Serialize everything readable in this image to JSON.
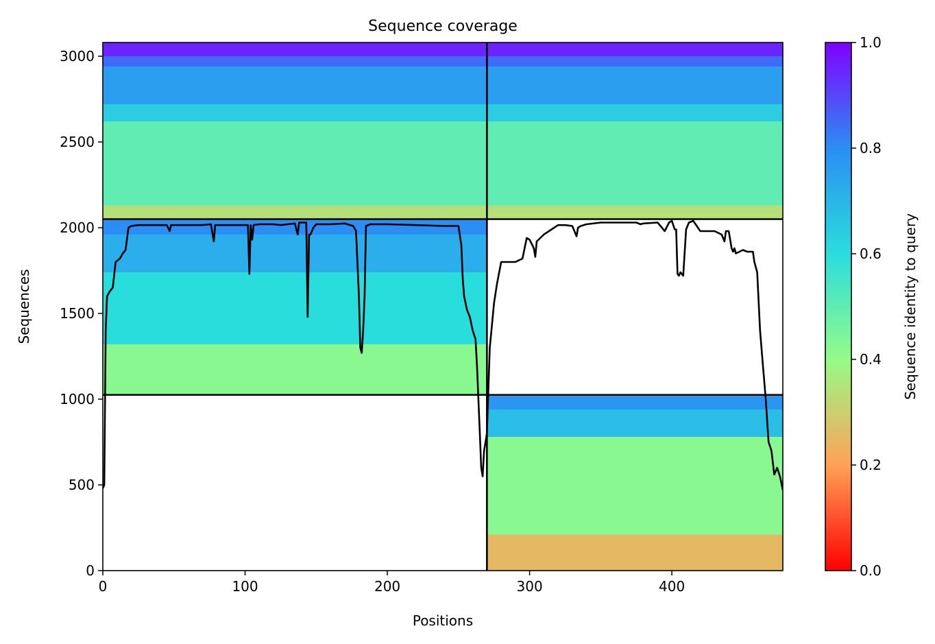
{
  "chart_data": {
    "type": "heatmap",
    "title": "Sequence coverage",
    "xlabel": "Positions",
    "ylabel": "Sequences",
    "xlim": [
      0,
      478
    ],
    "ylim": [
      0,
      3080
    ],
    "x_ticks": [
      0,
      100,
      200,
      300,
      400
    ],
    "y_ticks": [
      0,
      500,
      1000,
      1500,
      2000,
      2500,
      3000
    ],
    "colorbar": {
      "label": "Sequence identity to query",
      "range": [
        0,
        1
      ],
      "ticks": [
        0.0,
        0.2,
        0.4,
        0.6,
        0.8,
        1.0
      ],
      "tick_labels": [
        "0.0",
        "0.2",
        "0.4",
        "0.6",
        "0.8",
        "1.0"
      ],
      "colormap": "rainbow_r"
    },
    "chain_boundary_x": 270,
    "blocks": [
      {
        "name": "chain-A-only",
        "x": [
          0,
          270
        ],
        "y": [
          1025,
          2050
        ],
        "bands": [
          {
            "y": [
              1025,
              1320
            ],
            "identity": 0.42
          },
          {
            "y": [
              1320,
              1740
            ],
            "identity": 0.6
          },
          {
            "y": [
              1740,
              1960
            ],
            "identity": 0.72
          },
          {
            "y": [
              1960,
              2050
            ],
            "identity": 0.8
          }
        ]
      },
      {
        "name": "chain-B-only",
        "x": [
          270,
          478
        ],
        "y": [
          0,
          1025
        ],
        "bands": [
          {
            "y": [
              0,
              210
            ],
            "identity": 0.25
          },
          {
            "y": [
              210,
              780
            ],
            "identity": 0.42
          },
          {
            "y": [
              780,
              940
            ],
            "identity": 0.68
          },
          {
            "y": [
              940,
              1025
            ],
            "identity": 0.78
          }
        ]
      },
      {
        "name": "paired-A",
        "x": [
          0,
          270
        ],
        "y": [
          2050,
          3080
        ],
        "bands": [
          {
            "y": [
              2050,
              2130
            ],
            "identity": 0.34
          },
          {
            "y": [
              2130,
              2620
            ],
            "identity": 0.5
          },
          {
            "y": [
              2620,
              2720
            ],
            "identity": 0.64
          },
          {
            "y": [
              2720,
              2940
            ],
            "identity": 0.76
          },
          {
            "y": [
              2940,
              3000
            ],
            "identity": 0.85
          },
          {
            "y": [
              3000,
              3080
            ],
            "identity": 0.95
          }
        ]
      },
      {
        "name": "paired-B",
        "x": [
          270,
          478
        ],
        "y": [
          2050,
          3080
        ],
        "bands": [
          {
            "y": [
              2050,
              2130
            ],
            "identity": 0.34
          },
          {
            "y": [
              2130,
              2620
            ],
            "identity": 0.5
          },
          {
            "y": [
              2620,
              2720
            ],
            "identity": 0.64
          },
          {
            "y": [
              2720,
              2940
            ],
            "identity": 0.76
          },
          {
            "y": [
              2940,
              3000
            ],
            "identity": 0.85
          },
          {
            "y": [
              3000,
              3080
            ],
            "identity": 0.95
          }
        ]
      }
    ],
    "horizontal_lines_y": [
      1025,
      2050
    ],
    "coverage_line": {
      "x": [
        0,
        1,
        2,
        3,
        5,
        7,
        9,
        12,
        14,
        16,
        18,
        20,
        25,
        30,
        35,
        40,
        45,
        47,
        48,
        50,
        60,
        70,
        76,
        78,
        79,
        80,
        82,
        90,
        100,
        102,
        103,
        104,
        105,
        106,
        110,
        120,
        125,
        130,
        135,
        137,
        138,
        140,
        143,
        144,
        145,
        146,
        148,
        150,
        155,
        160,
        170,
        176,
        178,
        180,
        181,
        182,
        183,
        184,
        185,
        188,
        190,
        200,
        220,
        240,
        250,
        252,
        253,
        254,
        256,
        258,
        260,
        262,
        263,
        264,
        265,
        266,
        267,
        268,
        269,
        270,
        272,
        275,
        277,
        280,
        285,
        290,
        295,
        298,
        300,
        303,
        304,
        305,
        310,
        320,
        325,
        330,
        333,
        334,
        336,
        340,
        350,
        360,
        370,
        375,
        378,
        380,
        390,
        395,
        398,
        400,
        402,
        403,
        404,
        405,
        406,
        408,
        410,
        412,
        415,
        420,
        425,
        430,
        435,
        437,
        438,
        440,
        442,
        443,
        444,
        445,
        450,
        453,
        455,
        457,
        458,
        460,
        462,
        464,
        466,
        468,
        470,
        472,
        474,
        476,
        478
      ],
      "y": [
        480,
        500,
        1400,
        1600,
        1630,
        1650,
        1800,
        1820,
        1850,
        1870,
        2000,
        2010,
        2015,
        2015,
        2015,
        2015,
        2015,
        1980,
        2015,
        2015,
        2015,
        2015,
        2020,
        1920,
        2015,
        2015,
        2015,
        2015,
        2015,
        2015,
        1730,
        2015,
        1930,
        2015,
        2020,
        2020,
        2015,
        2020,
        2025,
        1960,
        2030,
        2030,
        2030,
        1480,
        1960,
        1960,
        2000,
        2020,
        2020,
        2020,
        2025,
        2010,
        1980,
        1600,
        1300,
        1270,
        1400,
        1600,
        2010,
        2020,
        2020,
        2020,
        2015,
        2010,
        2010,
        1900,
        1700,
        1600,
        1520,
        1480,
        1400,
        1350,
        1200,
        1000,
        800,
        600,
        550,
        700,
        750,
        800,
        1300,
        1560,
        1670,
        1800,
        1800,
        1800,
        1820,
        1940,
        1930,
        1880,
        1830,
        1920,
        1960,
        2015,
        2015,
        2010,
        1950,
        2000,
        2010,
        2020,
        2030,
        2030,
        2030,
        2030,
        2020,
        2025,
        2030,
        1980,
        2030,
        2040,
        1990,
        1990,
        1730,
        1720,
        1740,
        1720,
        1990,
        2030,
        2040,
        1980,
        1980,
        1980,
        1960,
        1920,
        1980,
        1980,
        1880,
        1860,
        1880,
        1850,
        1870,
        1860,
        1860,
        1860,
        1800,
        1740,
        1400,
        1200,
        1000,
        750,
        700,
        560,
        600,
        550,
        470
      ]
    }
  }
}
